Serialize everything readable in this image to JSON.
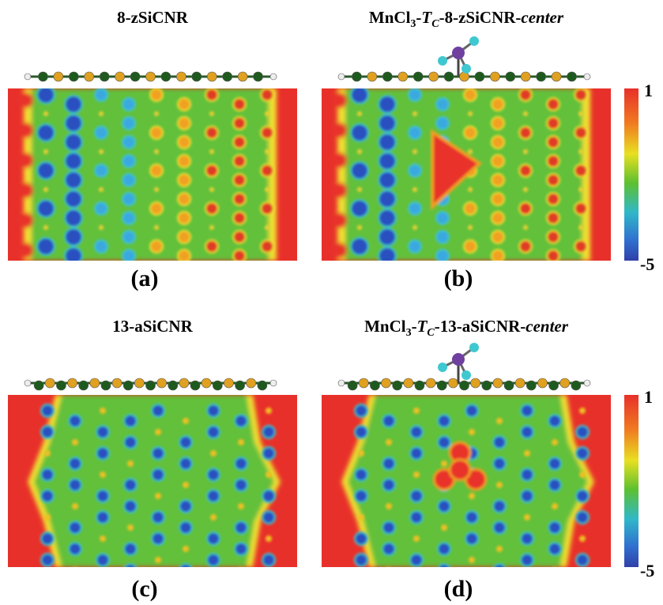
{
  "panels": [
    {
      "title": [
        {
          "text": "8-zSiCNR"
        }
      ],
      "label": "(a)"
    },
    {
      "title": [
        {
          "text": "MnCl"
        },
        {
          "text": "3",
          "style": "sub"
        },
        {
          "text": "-"
        },
        {
          "text": "T",
          "style": "italic"
        },
        {
          "text": "C",
          "style": "italic-sub"
        },
        {
          "text": "-8-zSiCNR-"
        },
        {
          "text": "center",
          "style": "italic"
        }
      ],
      "label": "(b)"
    },
    {
      "title": [
        {
          "text": "13-aSiCNR"
        }
      ],
      "label": "(c)"
    },
    {
      "title": [
        {
          "text": "MnCl"
        },
        {
          "text": "3",
          "style": "sub"
        },
        {
          "text": "-"
        },
        {
          "text": "T",
          "style": "italic"
        },
        {
          "text": "C",
          "style": "italic-sub"
        },
        {
          "text": "-13-aSiCNR-"
        },
        {
          "text": "center",
          "style": "italic"
        }
      ],
      "label": "(d)"
    }
  ],
  "colorbars": [
    {
      "top": "1",
      "bottom": "-5"
    },
    {
      "top": "1",
      "bottom": "-5"
    }
  ]
}
